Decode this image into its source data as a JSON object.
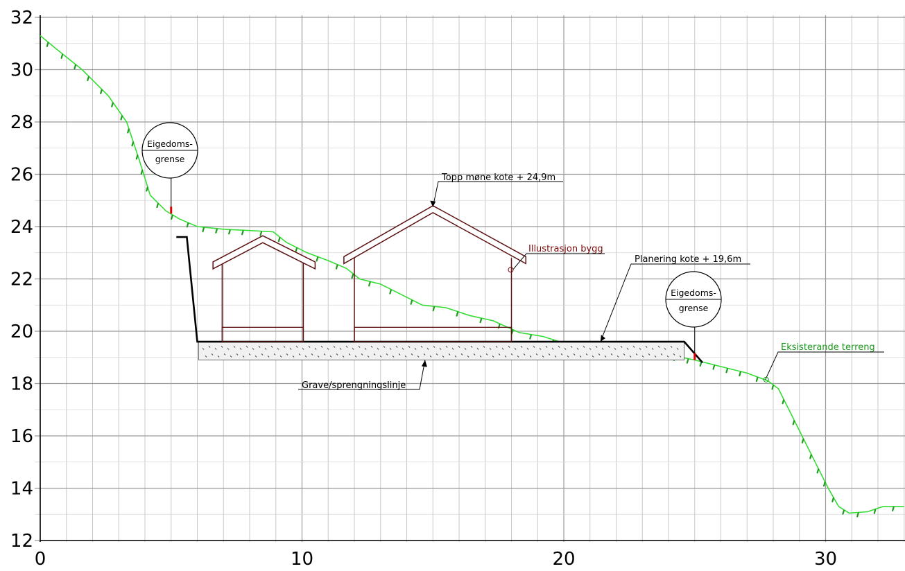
{
  "chart_data": {
    "type": "cross-section",
    "x_ticks": [
      "0",
      "10",
      "20",
      "30"
    ],
    "y_ticks": [
      "12",
      "14",
      "16",
      "18",
      "20",
      "22",
      "24",
      "26",
      "28",
      "30",
      "32"
    ],
    "xlim": [
      0,
      33
    ],
    "ylim": [
      12,
      32
    ],
    "grid": true,
    "existing_terrain": [
      [
        0,
        31.3
      ],
      [
        0.6,
        30.8
      ],
      [
        1.6,
        30.0
      ],
      [
        2.6,
        29.0
      ],
      [
        3.3,
        28.0
      ],
      [
        3.8,
        26.5
      ],
      [
        4.2,
        25.2
      ],
      [
        4.8,
        24.6
      ],
      [
        5.3,
        24.3
      ],
      [
        6.0,
        24.0
      ],
      [
        7.0,
        23.9
      ],
      [
        8.0,
        23.85
      ],
      [
        8.9,
        23.8
      ],
      [
        9.4,
        23.4
      ],
      [
        10.2,
        23.0
      ],
      [
        11.0,
        22.7
      ],
      [
        11.7,
        22.4
      ],
      [
        12.2,
        22.0
      ],
      [
        13.0,
        21.8
      ],
      [
        13.8,
        21.4
      ],
      [
        14.6,
        21.0
      ],
      [
        15.5,
        20.9
      ],
      [
        16.4,
        20.6
      ],
      [
        17.3,
        20.4
      ],
      [
        18.3,
        19.95
      ],
      [
        19.2,
        19.8
      ],
      [
        20.0,
        19.55
      ],
      [
        21.0,
        19.5
      ],
      [
        22.0,
        19.6
      ],
      [
        23.0,
        19.3
      ],
      [
        24.0,
        19.1
      ],
      [
        25.0,
        18.9
      ],
      [
        26.0,
        18.65
      ],
      [
        27.0,
        18.4
      ],
      [
        27.8,
        18.1
      ],
      [
        28.2,
        17.8
      ],
      [
        28.6,
        17.0
      ],
      [
        29.0,
        16.2
      ],
      [
        29.6,
        15.0
      ],
      [
        30.1,
        14.0
      ],
      [
        30.5,
        13.3
      ],
      [
        30.9,
        13.05
      ],
      [
        31.6,
        13.1
      ],
      [
        32.2,
        13.3
      ],
      [
        33.0,
        13.3
      ]
    ],
    "planering_level": 19.6,
    "ridge_level": 24.9,
    "labels": {
      "ridge": "Topp møne kote + 24,9m",
      "building": "Illustrasjon bygg",
      "planering": "Planering kote + 19,6m",
      "excavation": "Grave/sprengningslinje",
      "terrain": "Eksisterande terreng"
    },
    "property_boundary": {
      "line1": "Eigedoms-",
      "line2": "grense",
      "x_positions": [
        5.0,
        25.0
      ]
    },
    "colors": {
      "terrain": "#33dd33",
      "terrain_hatch": "#1f9a1f",
      "building": "#5c1010",
      "platform": "#000000",
      "boundary_marker": "#e00000",
      "grid": "#c8c8c8"
    }
  }
}
